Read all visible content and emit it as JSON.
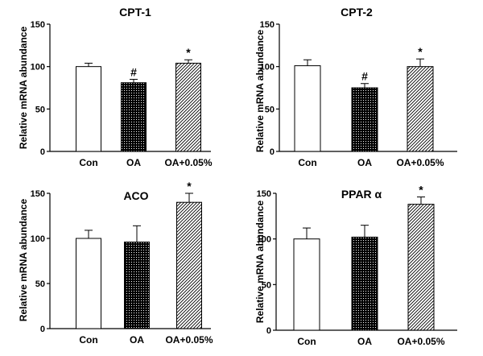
{
  "chart_data": [
    {
      "type": "bar",
      "title": "CPT-1",
      "ylabel": "Relative mRNA abundance",
      "categories": [
        "Con",
        "OA",
        "OA+0.05%"
      ],
      "values": [
        100,
        81,
        104
      ],
      "errors": [
        4,
        4,
        4
      ],
      "annotations": [
        "",
        "#",
        "*"
      ],
      "ylim": [
        0,
        150
      ],
      "yticks": [
        "0",
        "50",
        "100",
        "150"
      ]
    },
    {
      "type": "bar",
      "title": "CPT-2",
      "ylabel": "Relative mRNA abundance",
      "categories": [
        "Con",
        "OA",
        "OA+0.05%"
      ],
      "values": [
        101,
        75,
        100
      ],
      "errors": [
        7,
        5,
        9
      ],
      "annotations": [
        "",
        "#",
        "*"
      ],
      "ylim": [
        0,
        150
      ],
      "yticks": [
        "0",
        "50",
        "100",
        "150"
      ]
    },
    {
      "type": "bar",
      "title": "ACO",
      "ylabel": "Relative mRNA abundance",
      "categories": [
        "Con",
        "OA",
        "OA+0.05%"
      ],
      "values": [
        100,
        96,
        140
      ],
      "errors": [
        9,
        18,
        10
      ],
      "annotations": [
        "",
        "",
        "*"
      ],
      "ylim": [
        0,
        150
      ],
      "yticks": [
        "0",
        "50",
        "100",
        "150"
      ]
    },
    {
      "type": "bar",
      "title": "PPAR α",
      "ylabel": "Relative mRNA abundance",
      "categories": [
        "Con",
        "OA",
        "OA+0.05%"
      ],
      "values": [
        100,
        102,
        138
      ],
      "errors": [
        12,
        13,
        8
      ],
      "annotations": [
        "",
        "",
        "*"
      ],
      "ylim": [
        0,
        150
      ],
      "yticks": [
        "0",
        "50",
        "100",
        "150"
      ]
    }
  ]
}
